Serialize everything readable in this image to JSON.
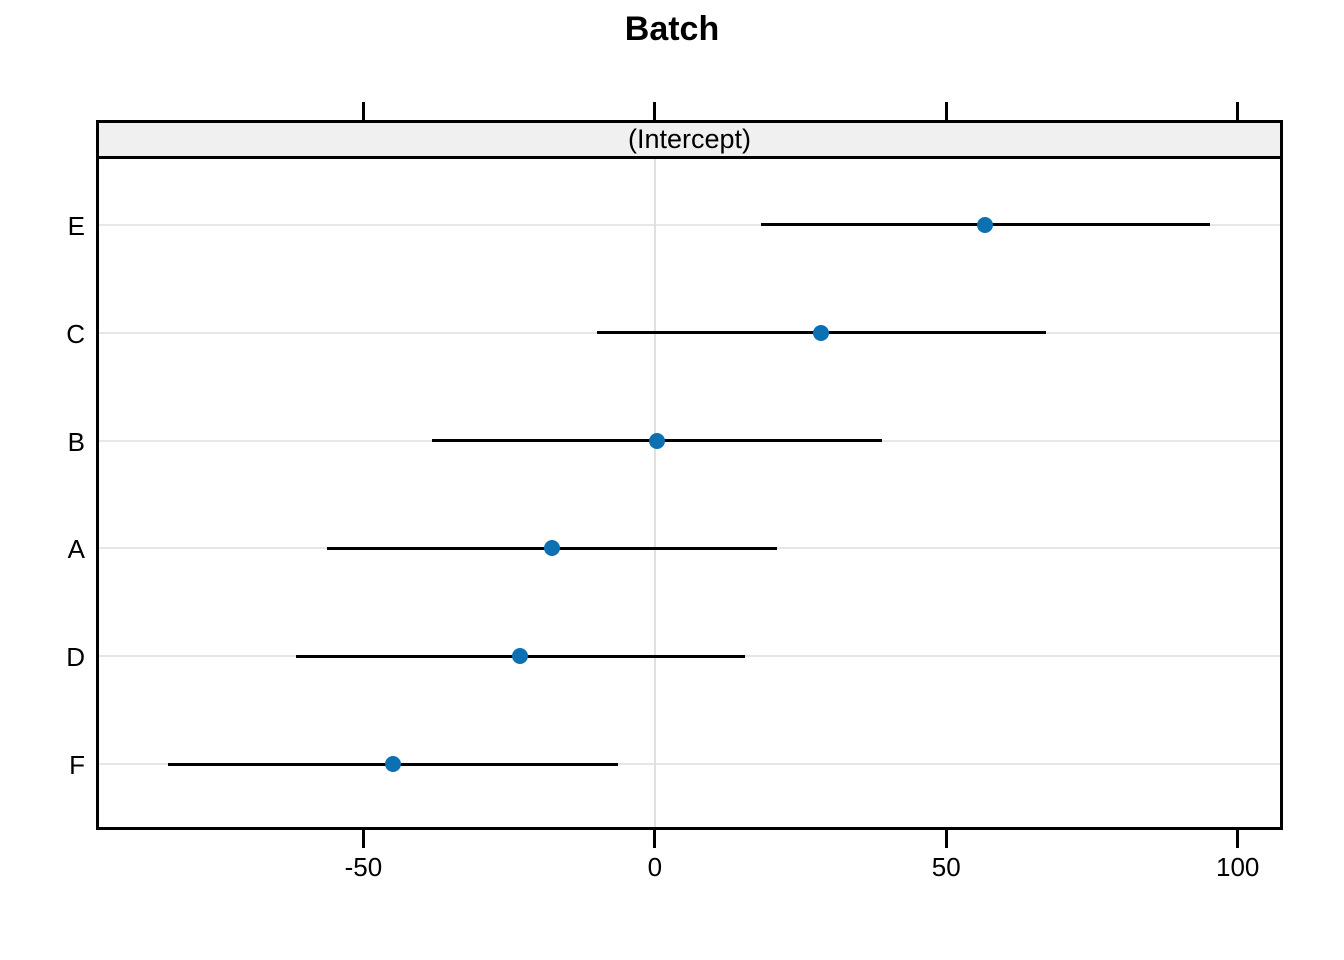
{
  "chart_data": {
    "type": "dotplot",
    "title": "Batch",
    "panel_label": "(Intercept)",
    "xlim": [
      -95.7,
      107.6
    ],
    "x_ticks": [
      -50,
      0,
      50,
      100
    ],
    "x_tick_labels": [
      "-50",
      "0",
      "50",
      "100"
    ],
    "reference_line_x": 0,
    "grid": "horizontal-per-row",
    "legend": "none",
    "rows": [
      {
        "label": "E",
        "estimate": 56.73,
        "lo": 18.2,
        "hi": 95.3
      },
      {
        "label": "C",
        "estimate": 28.56,
        "lo": -10.0,
        "hi": 67.1
      },
      {
        "label": "B",
        "estimate": 0.39,
        "lo": -38.2,
        "hi": 38.9
      },
      {
        "label": "A",
        "estimate": -17.61,
        "lo": -56.2,
        "hi": 20.9
      },
      {
        "label": "D",
        "estimate": -23.08,
        "lo": -61.6,
        "hi": 15.5
      },
      {
        "label": "F",
        "estimate": -44.99,
        "lo": -83.5,
        "hi": -6.4
      }
    ],
    "colors": {
      "point": "#0d70b2",
      "interval": "#000000",
      "grid": "#e6e6e6",
      "reference": "#e0e0e0",
      "strip_bg": "#f0f0f0",
      "border": "#000000",
      "text": "#000000"
    }
  }
}
